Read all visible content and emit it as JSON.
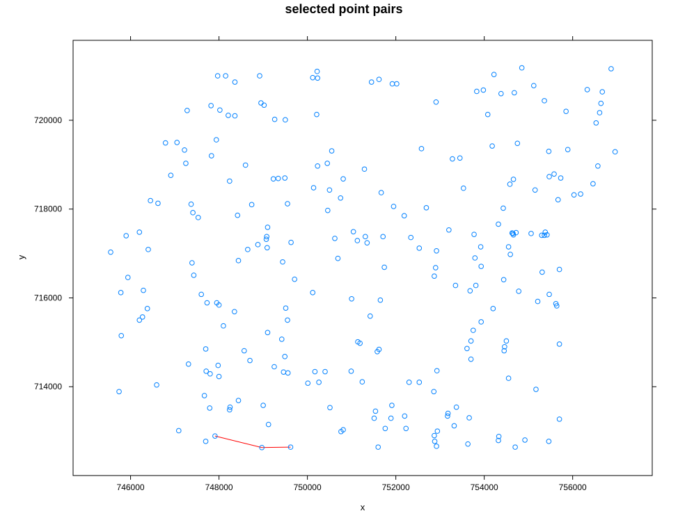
{
  "chart_data": {
    "type": "scatter",
    "title": "selected point pairs",
    "xlabel": "x",
    "ylabel": "y",
    "xlim": [
      744700,
      757800
    ],
    "ylim": [
      712000,
      721800
    ],
    "x_ticks": [
      746000,
      748000,
      750000,
      752000,
      754000,
      756000
    ],
    "x_tick_labels": [
      "746000",
      "748000",
      "750000",
      "752000",
      "754000",
      "756000"
    ],
    "y_ticks": [
      714000,
      716000,
      718000,
      720000
    ],
    "y_tick_labels": [
      "714000",
      "716000",
      "718000",
      "720000"
    ],
    "grid": false,
    "point_color": "#0080ff",
    "pair_color": "#ff0000",
    "points": [
      [
        747970,
        721000
      ],
      [
        748150,
        721000
      ],
      [
        748360,
        720860
      ],
      [
        748920,
        721000
      ],
      [
        750120,
        720960
      ],
      [
        750220,
        721100
      ],
      [
        750230,
        720950
      ],
      [
        751450,
        720860
      ],
      [
        751620,
        720920
      ],
      [
        751920,
        720820
      ],
      [
        752020,
        720820
      ],
      [
        754220,
        721030
      ],
      [
        754850,
        721180
      ],
      [
        756870,
        721160
      ],
      [
        753830,
        720650
      ],
      [
        753980,
        720680
      ],
      [
        754380,
        720600
      ],
      [
        754680,
        720620
      ],
      [
        755120,
        720780
      ],
      [
        756330,
        720690
      ],
      [
        756670,
        720640
      ],
      [
        752910,
        720410
      ],
      [
        755360,
        720440
      ],
      [
        756640,
        720380
      ],
      [
        747280,
        720220
      ],
      [
        747820,
        720330
      ],
      [
        748020,
        720230
      ],
      [
        748210,
        720110
      ],
      [
        748360,
        720100
      ],
      [
        748950,
        720390
      ],
      [
        749020,
        720340
      ],
      [
        750210,
        720130
      ],
      [
        754080,
        720130
      ],
      [
        755850,
        720200
      ],
      [
        756610,
        720170
      ],
      [
        756530,
        719940
      ],
      [
        749260,
        720020
      ],
      [
        749500,
        720010
      ],
      [
        746790,
        719490
      ],
      [
        747050,
        719500
      ],
      [
        747220,
        719330
      ],
      [
        747940,
        719560
      ],
      [
        747830,
        719200
      ],
      [
        747250,
        719030
      ],
      [
        746910,
        718760
      ],
      [
        748240,
        718630
      ],
      [
        748600,
        718990
      ],
      [
        749230,
        718680
      ],
      [
        749340,
        718690
      ],
      [
        749490,
        718700
      ],
      [
        750230,
        718970
      ],
      [
        750450,
        719030
      ],
      [
        750550,
        719310
      ],
      [
        750810,
        718680
      ],
      [
        750140,
        718480
      ],
      [
        750500,
        718430
      ],
      [
        751290,
        718900
      ],
      [
        751670,
        718370
      ],
      [
        752580,
        719360
      ],
      [
        753280,
        719130
      ],
      [
        753450,
        719150
      ],
      [
        753530,
        718470
      ],
      [
        754180,
        719420
      ],
      [
        754580,
        718560
      ],
      [
        754660,
        718670
      ],
      [
        754750,
        719480
      ],
      [
        755150,
        718430
      ],
      [
        755460,
        719300
      ],
      [
        755470,
        718730
      ],
      [
        755580,
        718790
      ],
      [
        755730,
        718700
      ],
      [
        755890,
        719340
      ],
      [
        756570,
        718970
      ],
      [
        756960,
        719290
      ],
      [
        756460,
        718570
      ],
      [
        756030,
        718320
      ],
      [
        756180,
        718340
      ],
      [
        755670,
        718210
      ],
      [
        746450,
        718190
      ],
      [
        746620,
        718130
      ],
      [
        747370,
        718110
      ],
      [
        747410,
        717920
      ],
      [
        747530,
        717810
      ],
      [
        748420,
        717860
      ],
      [
        748740,
        718100
      ],
      [
        749550,
        718120
      ],
      [
        750460,
        717970
      ],
      [
        750750,
        718250
      ],
      [
        751950,
        718060
      ],
      [
        752190,
        717850
      ],
      [
        752690,
        718030
      ],
      [
        754430,
        718020
      ],
      [
        746200,
        717480
      ],
      [
        745900,
        717400
      ],
      [
        745550,
        717030
      ],
      [
        746400,
        717090
      ],
      [
        749100,
        717590
      ],
      [
        749080,
        717380
      ],
      [
        749070,
        717320
      ],
      [
        749090,
        717130
      ],
      [
        748650,
        717090
      ],
      [
        748880,
        717200
      ],
      [
        749630,
        717250
      ],
      [
        750620,
        717340
      ],
      [
        751040,
        717490
      ],
      [
        751130,
        717290
      ],
      [
        751310,
        717380
      ],
      [
        751350,
        717240
      ],
      [
        751710,
        717380
      ],
      [
        752340,
        717360
      ],
      [
        752530,
        717120
      ],
      [
        753200,
        717530
      ],
      [
        753770,
        717430
      ],
      [
        754320,
        717660
      ],
      [
        754630,
        717460
      ],
      [
        754660,
        717420
      ],
      [
        754720,
        717470
      ],
      [
        754650,
        717450
      ],
      [
        755060,
        717450
      ],
      [
        755300,
        717410
      ],
      [
        755360,
        717410
      ],
      [
        755380,
        717480
      ],
      [
        755420,
        717420
      ],
      [
        747390,
        716790
      ],
      [
        747430,
        716510
      ],
      [
        748440,
        716840
      ],
      [
        749440,
        716810
      ],
      [
        749710,
        716420
      ],
      [
        750690,
        716890
      ],
      [
        751740,
        716690
      ],
      [
        752920,
        717060
      ],
      [
        752900,
        716680
      ],
      [
        752870,
        716490
      ],
      [
        753790,
        716900
      ],
      [
        753920,
        717150
      ],
      [
        753930,
        716710
      ],
      [
        754550,
        717150
      ],
      [
        754590,
        716980
      ],
      [
        755310,
        716580
      ],
      [
        755700,
        716640
      ],
      [
        745940,
        716460
      ],
      [
        745780,
        716120
      ],
      [
        746290,
        716170
      ],
      [
        746380,
        715760
      ],
      [
        746270,
        715570
      ],
      [
        746200,
        715500
      ],
      [
        745790,
        715150
      ],
      [
        747600,
        716080
      ],
      [
        747730,
        715890
      ],
      [
        747950,
        715890
      ],
      [
        748000,
        715840
      ],
      [
        748350,
        715690
      ],
      [
        748100,
        715370
      ],
      [
        749510,
        715770
      ],
      [
        749550,
        715500
      ],
      [
        750120,
        716120
      ],
      [
        751000,
        715980
      ],
      [
        751650,
        715950
      ],
      [
        751420,
        715590
      ],
      [
        753350,
        716280
      ],
      [
        753680,
        716160
      ],
      [
        753810,
        716280
      ],
      [
        754440,
        716410
      ],
      [
        754200,
        715760
      ],
      [
        754780,
        716150
      ],
      [
        755210,
        715920
      ],
      [
        755470,
        716080
      ],
      [
        755620,
        715870
      ],
      [
        755640,
        715820
      ],
      [
        753930,
        715460
      ],
      [
        753750,
        715270
      ],
      [
        749100,
        715220
      ],
      [
        749420,
        715070
      ],
      [
        747700,
        714850
      ],
      [
        748570,
        714810
      ],
      [
        748700,
        714590
      ],
      [
        747310,
        714510
      ],
      [
        747980,
        714480
      ],
      [
        747710,
        714350
      ],
      [
        747800,
        714290
      ],
      [
        748000,
        714230
      ],
      [
        749250,
        714450
      ],
      [
        749490,
        714680
      ],
      [
        749460,
        714330
      ],
      [
        749560,
        714310
      ],
      [
        751140,
        715010
      ],
      [
        751190,
        714980
      ],
      [
        751580,
        714790
      ],
      [
        751620,
        714840
      ],
      [
        753700,
        715030
      ],
      [
        753610,
        714860
      ],
      [
        754500,
        715030
      ],
      [
        754460,
        714900
      ],
      [
        754450,
        714810
      ],
      [
        755700,
        714960
      ],
      [
        753700,
        714620
      ],
      [
        752930,
        714360
      ],
      [
        750170,
        714340
      ],
      [
        750400,
        714340
      ],
      [
        750990,
        714350
      ],
      [
        750010,
        714080
      ],
      [
        750260,
        714100
      ],
      [
        751240,
        714110
      ],
      [
        752300,
        714100
      ],
      [
        752530,
        714100
      ],
      [
        754550,
        714190
      ],
      [
        755170,
        713940
      ],
      [
        746590,
        714040
      ],
      [
        745740,
        713890
      ],
      [
        747670,
        713800
      ],
      [
        747790,
        713520
      ],
      [
        748250,
        713540
      ],
      [
        748240,
        713480
      ],
      [
        748440,
        713690
      ],
      [
        749000,
        713580
      ],
      [
        749120,
        713150
      ],
      [
        750510,
        713530
      ],
      [
        751540,
        713450
      ],
      [
        751510,
        713290
      ],
      [
        751910,
        713580
      ],
      [
        751890,
        713290
      ],
      [
        752200,
        713340
      ],
      [
        752860,
        713890
      ],
      [
        753180,
        713400
      ],
      [
        753170,
        713340
      ],
      [
        753370,
        713540
      ],
      [
        753320,
        713120
      ],
      [
        753660,
        713300
      ],
      [
        755700,
        713270
      ],
      [
        747090,
        713010
      ],
      [
        747700,
        712770
      ],
      [
        750810,
        713030
      ],
      [
        750760,
        712990
      ],
      [
        751600,
        712640
      ],
      [
        751760,
        713060
      ],
      [
        752230,
        713060
      ],
      [
        752870,
        712900
      ],
      [
        752940,
        713000
      ],
      [
        752880,
        712770
      ],
      [
        752920,
        712660
      ],
      [
        753630,
        712710
      ],
      [
        754330,
        712880
      ],
      [
        754320,
        712790
      ],
      [
        754700,
        712640
      ],
      [
        754920,
        712800
      ],
      [
        755460,
        712770
      ]
    ],
    "pairs": [
      [
        [
          747910,
          712890
        ],
        [
          748970,
          712630
        ]
      ],
      [
        [
          748970,
          712630
        ],
        [
          749620,
          712640
        ]
      ]
    ]
  }
}
